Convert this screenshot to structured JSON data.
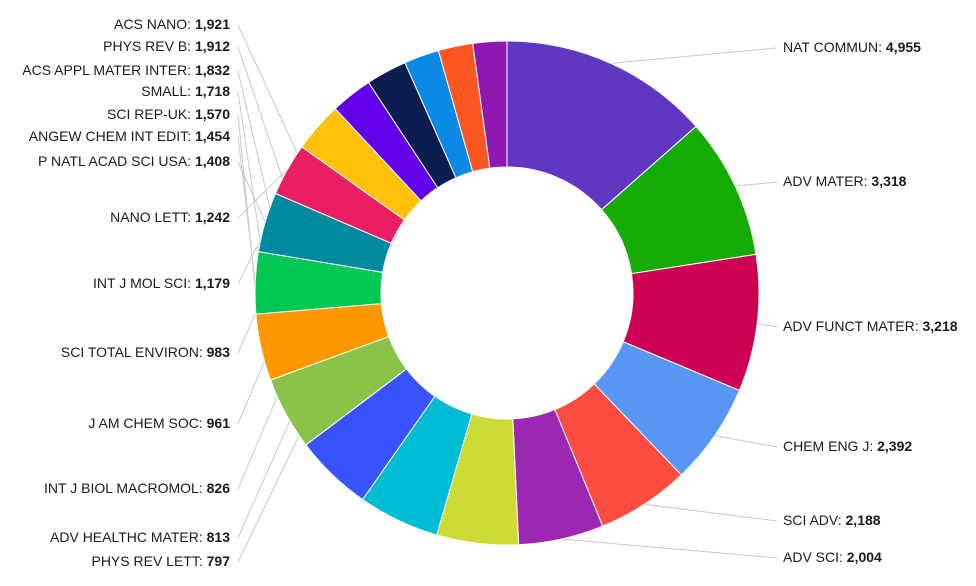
{
  "chart_data": {
    "type": "pie",
    "variant": "donut",
    "slices": [
      {
        "label": "NAT COMMUN",
        "value": 4955,
        "value_text": "4,955",
        "color": "#6137c2"
      },
      {
        "label": "ADV MATER",
        "value": 3318,
        "value_text": "3,318",
        "color": "#17ab05"
      },
      {
        "label": "ADV FUNCT MATER",
        "value": 3218,
        "value_text": "3,218",
        "color": "#cc0055"
      },
      {
        "label": "CHEM ENG J",
        "value": 2392,
        "value_text": "2,392",
        "color": "#5896f3"
      },
      {
        "label": "SCI ADV",
        "value": 2188,
        "value_text": "2,188",
        "color": "#fd4d42"
      },
      {
        "label": "ADV SCI",
        "value": 2004,
        "value_text": "2,004",
        "color": "#9c27b0"
      },
      {
        "label": "ACS NANO",
        "value": 1921,
        "value_text": "1,921",
        "color": "#cddb36"
      },
      {
        "label": "PHYS REV B",
        "value": 1912,
        "value_text": "1,912",
        "color": "#00bcd4"
      },
      {
        "label": "ACS APPL MATER INTER",
        "value": 1832,
        "value_text": "1,832",
        "color": "#3653fd"
      },
      {
        "label": "SMALL",
        "value": 1718,
        "value_text": "1,718",
        "color": "#8bc34a"
      },
      {
        "label": "SCI REP-UK",
        "value": 1570,
        "value_text": "1,570",
        "color": "#ff9800"
      },
      {
        "label": "ANGEW CHEM INT EDIT",
        "value": 1454,
        "value_text": "1,454",
        "color": "#00c853"
      },
      {
        "label": "P NATL ACAD SCI USA",
        "value": 1408,
        "value_text": "1,408",
        "color": "#00899f"
      },
      {
        "label": "NANO LETT",
        "value": 1242,
        "value_text": "1,242",
        "color": "#e91e63"
      },
      {
        "label": "INT J MOL SCI",
        "value": 1179,
        "value_text": "1,179",
        "color": "#ffc107"
      },
      {
        "label": "SCI TOTAL ENVIRON",
        "value": 983,
        "value_text": "983",
        "color": "#6200ea"
      },
      {
        "label": "J AM CHEM SOC",
        "value": 961,
        "value_text": "961",
        "color": "#0b1d51"
      },
      {
        "label": "INT J BIOL MACROMOL",
        "value": 826,
        "value_text": "826",
        "color": "#0b8ae4"
      },
      {
        "label": "ADV HEALTHC MATER",
        "value": 813,
        "value_text": "813",
        "color": "#ff5722"
      },
      {
        "label": "PHYS REV LETT",
        "value": 797,
        "value_text": "797",
        "color": "#8e18b0"
      }
    ],
    "label_format": "name: value",
    "legend": "none"
  }
}
